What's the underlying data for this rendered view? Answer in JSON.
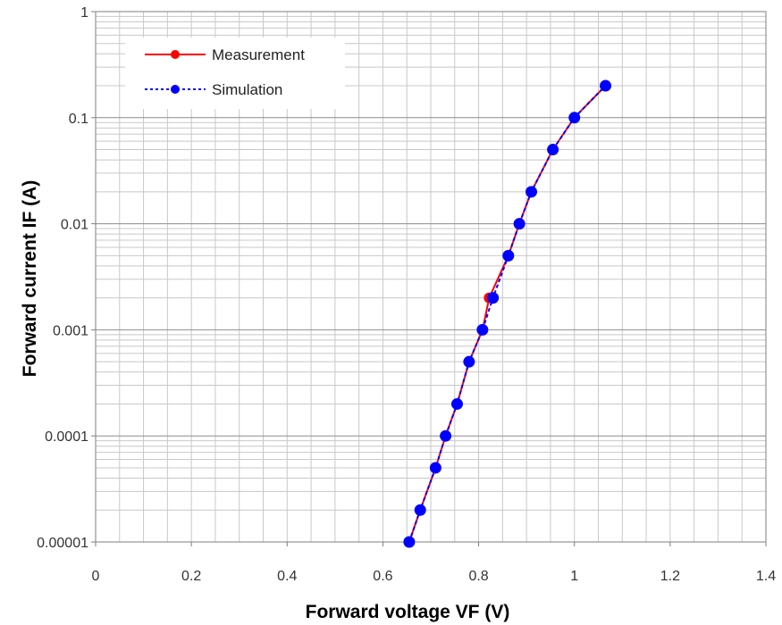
{
  "chart_data": {
    "type": "line",
    "xlabel": "Forward voltage VF (V)",
    "ylabel": "Forward current IF (A)",
    "xlim": [
      0,
      1.4
    ],
    "ylim": [
      1e-05,
      1
    ],
    "y_scale": "log",
    "grid": true,
    "legend_position": "top-left",
    "x_ticks": [
      0,
      0.2,
      0.4,
      0.6,
      0.8,
      1,
      1.2,
      1.4
    ],
    "x_tick_labels": [
      "0",
      "0.2",
      "0.4",
      "0.6",
      "0.8",
      "1",
      "1.2",
      "1.4"
    ],
    "y_ticks": [
      1e-05,
      0.0001,
      0.001,
      0.01,
      0.1,
      1
    ],
    "y_tick_labels": [
      "0.00001",
      "0.0001",
      "0.001",
      "0.01",
      "0.1",
      "1"
    ],
    "series": [
      {
        "name": "Measurement",
        "color": "#ff0000",
        "line_style": "solid",
        "marker": "circle",
        "x": [
          0.655,
          0.678,
          0.71,
          0.731,
          0.755,
          0.78,
          0.808,
          0.822,
          0.862,
          0.885,
          0.91,
          0.955,
          1.0,
          1.065
        ],
        "y": [
          1e-05,
          2e-05,
          5e-05,
          0.0001,
          0.0002,
          0.0005,
          0.001,
          0.002,
          0.005,
          0.01,
          0.02,
          0.05,
          0.1,
          0.2
        ]
      },
      {
        "name": "Simulation",
        "color": "#0000ff",
        "line_style": "dashed",
        "marker": "circle",
        "x": [
          0.655,
          0.678,
          0.71,
          0.731,
          0.755,
          0.78,
          0.808,
          0.83,
          0.862,
          0.885,
          0.91,
          0.955,
          1.0,
          1.065
        ],
        "y": [
          1e-05,
          2e-05,
          5e-05,
          0.0001,
          0.0002,
          0.0005,
          0.001,
          0.002,
          0.005,
          0.01,
          0.02,
          0.05,
          0.1,
          0.2
        ]
      }
    ]
  }
}
